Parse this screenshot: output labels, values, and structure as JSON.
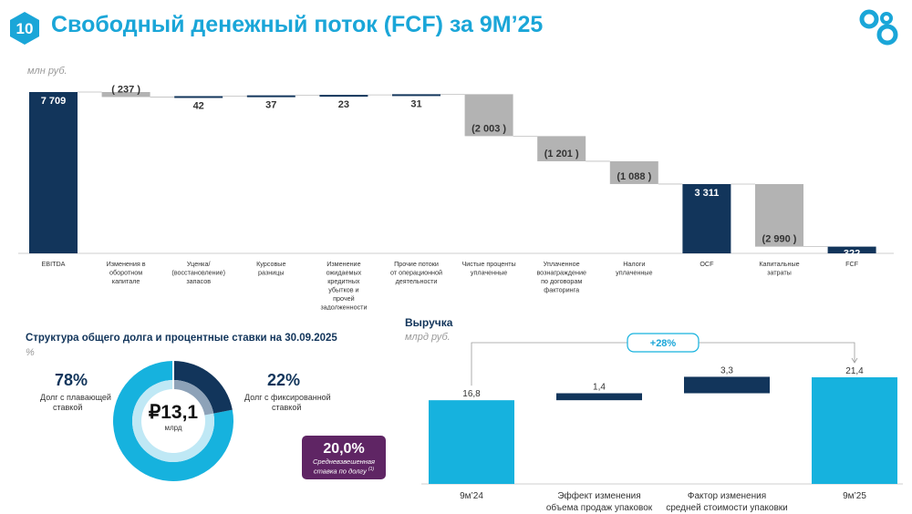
{
  "page": {
    "number": "10",
    "title": "Свободный денежный поток (FCF) за 9М’25"
  },
  "colors": {
    "navy": "#12355b",
    "gray": "#b3b3b3",
    "cyan": "#16b2de",
    "purple": "#5f2564",
    "title": "#1aa6d8"
  },
  "waterfall": {
    "unit": "млн руб.",
    "chart_data": {
      "type": "waterfall",
      "ylim": [
        0,
        7709
      ],
      "bars": [
        {
          "label": "EBITDA",
          "value": 7709,
          "kind": "total",
          "display": "7 709"
        },
        {
          "label": "Изменения в оборотном капитале",
          "value": -237,
          "kind": "decrease",
          "display": "( 237 )"
        },
        {
          "label": "Уценка/ (восстановление) запасов",
          "value": 42,
          "kind": "increase",
          "display": "42"
        },
        {
          "label": "Курсовые разницы",
          "value": 37,
          "kind": "increase",
          "display": "37"
        },
        {
          "label": "Изменение ожидаемых кредитных убытков и прочей задолженности",
          "value": 23,
          "kind": "increase",
          "display": "23"
        },
        {
          "label": "Прочие потоки от операционной деятельности",
          "value": 31,
          "kind": "increase",
          "display": "31"
        },
        {
          "label": "Чистые проценты уплаченные",
          "value": -2003,
          "kind": "decrease",
          "display": "(2 003 )"
        },
        {
          "label": "Уплаченное вознаграждение по договорам факторинга",
          "value": -1201,
          "kind": "decrease",
          "display": "(1 201 )"
        },
        {
          "label": "Налоги уплаченные",
          "value": -1088,
          "kind": "decrease",
          "display": "(1 088 )"
        },
        {
          "label": "OCF",
          "value": 3311,
          "kind": "total",
          "display": "3 311"
        },
        {
          "label": "Капитальные затраты",
          "value": -2990,
          "kind": "decrease",
          "display": "(2 990 )"
        },
        {
          "label": "FCF",
          "value": 322,
          "kind": "total",
          "display": "322"
        }
      ]
    }
  },
  "debt": {
    "title": "Структура общего долга и процентные ставки на 30.09.2025",
    "unit": "%",
    "total_value": "₽13,1",
    "total_unit": "млрд",
    "floating_pct": "78%",
    "floating_label_1": "Долг с плавающей",
    "floating_label_2": "ставкой",
    "fixed_pct": "22%",
    "fixed_label_1": "Долг с фиксированной",
    "fixed_label_2": "ставкой",
    "rate_value": "20,0%",
    "rate_label_1": "Средневзвешенная",
    "rate_label_2": "ставка по долгу",
    "rate_footnote": "(1)",
    "chart_data": {
      "type": "pie",
      "slices": [
        {
          "name": "Долг с плавающей ставкой",
          "value": 78
        },
        {
          "name": "Долг с фиксированной ставкой",
          "value": 22
        }
      ]
    }
  },
  "revenue": {
    "title": "Выручка",
    "unit": "млрд руб.",
    "growth": "+28%",
    "chart_data": {
      "type": "waterfall",
      "ylim": [
        0,
        21.4
      ],
      "bars": [
        {
          "label_lines": [
            "9м’24"
          ],
          "value": 16.8,
          "kind": "total",
          "display": "16,8"
        },
        {
          "label_lines": [
            "Эффект изменения",
            "объема продаж упаковок"
          ],
          "value": 1.4,
          "kind": "increase",
          "display": "1,4"
        },
        {
          "label_lines": [
            "Фактор изменения",
            "средней стоимости упаковки"
          ],
          "value": 3.3,
          "kind": "increase",
          "display": "3,3"
        },
        {
          "label_lines": [
            "9м’25"
          ],
          "value": 21.4,
          "kind": "total",
          "display": "21,4"
        }
      ]
    }
  }
}
